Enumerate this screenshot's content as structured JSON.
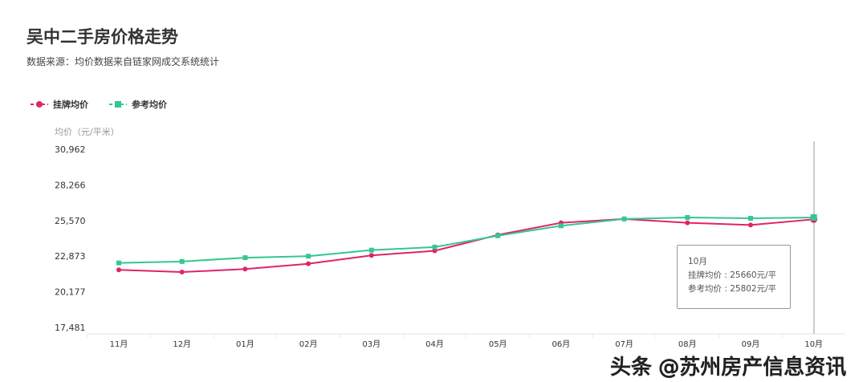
{
  "title": "吴中二手房价格走势",
  "subtitle": "数据来源：均价数据来自链家网成交系统统计",
  "colors": {
    "listing": "#e0236a",
    "reference": "#35c78f"
  },
  "tooltip": {
    "month": "10月",
    "line1": "挂牌均价 : 25660元/平",
    "line2": "参考均价 : 25802元/平"
  },
  "watermark": "头条 @苏州房产信息资讯",
  "chart_data": {
    "type": "line",
    "title": "吴中二手房价格走势",
    "ylabel": "均价（元/平米）",
    "xlabel": "",
    "ylim": [
      17481,
      30962
    ],
    "yticks": [
      "17,481",
      "20,177",
      "22,873",
      "25,570",
      "28,266",
      "30,962"
    ],
    "ytick_values": [
      17481,
      20177,
      22873,
      25570,
      28266,
      30962
    ],
    "categories": [
      "11月",
      "12月",
      "01月",
      "02月",
      "03月",
      "04月",
      "05月",
      "06月",
      "07月",
      "08月",
      "09月",
      "10月"
    ],
    "legend": "top-left",
    "grid": false,
    "series": [
      {
        "name": "挂牌均价",
        "marker": "circle",
        "values": [
          21840,
          21670,
          21900,
          22300,
          22930,
          23280,
          24480,
          25400,
          25690,
          25400,
          25230,
          25660
        ]
      },
      {
        "name": "参考均价",
        "marker": "square",
        "values": [
          22360,
          22470,
          22760,
          22870,
          23330,
          23560,
          24420,
          25170,
          25690,
          25800,
          25740,
          25802
        ]
      }
    ]
  }
}
